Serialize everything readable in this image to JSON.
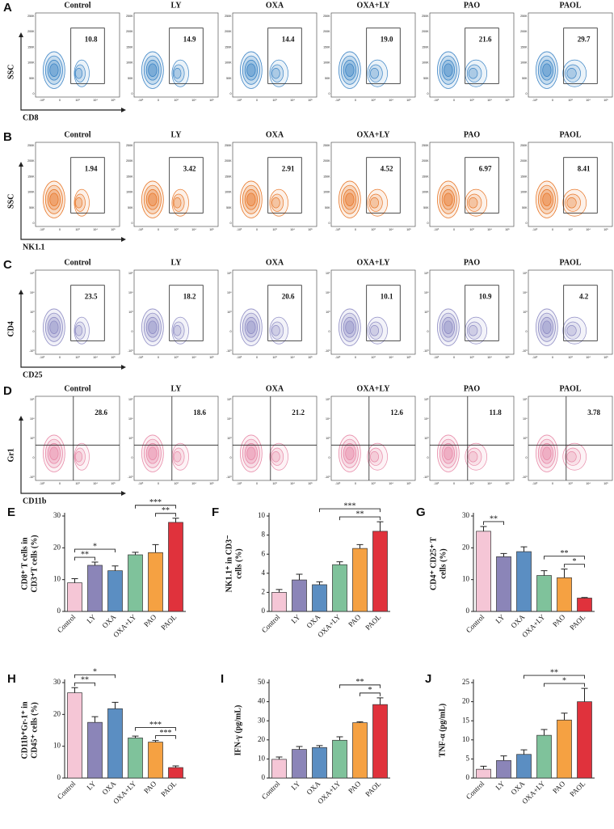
{
  "flow_panels": [
    {
      "label": "A",
      "x_label": "CD8",
      "y_label": "SSC",
      "gate": "box",
      "color": "#3d85c6",
      "xticks": [
        "-10³",
        "0",
        "10³",
        "10⁴",
        "10⁵"
      ],
      "yticks": [
        "0",
        "50K",
        "100K",
        "150K",
        "200K",
        "250K"
      ],
      "groups": [
        {
          "name": "Control",
          "value": "10.8"
        },
        {
          "name": "LY",
          "value": "14.9"
        },
        {
          "name": "OXA",
          "value": "14.4"
        },
        {
          "name": "OXA+LY",
          "value": "19.0"
        },
        {
          "name": "PAO",
          "value": "21.6"
        },
        {
          "name": "PAOL",
          "value": "29.7"
        }
      ]
    },
    {
      "label": "B",
      "x_label": "NK1.1",
      "y_label": "SSC",
      "gate": "box",
      "color": "#e8782a",
      "xticks": [
        "-10³",
        "0",
        "10³",
        "10⁴",
        "10⁵"
      ],
      "yticks": [
        "0",
        "50K",
        "100K",
        "150K",
        "200K",
        "250K"
      ],
      "groups": [
        {
          "name": "Control",
          "value": "1.94"
        },
        {
          "name": "LY",
          "value": "3.42"
        },
        {
          "name": "OXA",
          "value": "2.91"
        },
        {
          "name": "OXA+LY",
          "value": "4.52"
        },
        {
          "name": "PAO",
          "value": "6.97"
        },
        {
          "name": "PAOL",
          "value": "8.41"
        }
      ]
    },
    {
      "label": "C",
      "x_label": "CD25",
      "y_label": "CD4",
      "gate": "box",
      "color": "#8e8cc4",
      "xticks": [
        "-10³",
        "0",
        "10³",
        "10⁴",
        "10⁵"
      ],
      "yticks": [
        "-10³",
        "0",
        "10³",
        "10⁴",
        "10⁵"
      ],
      "groups": [
        {
          "name": "Control",
          "value": "23.5"
        },
        {
          "name": "LY",
          "value": "18.2"
        },
        {
          "name": "OXA",
          "value": "20.6"
        },
        {
          "name": "OXA+LY",
          "value": "10.1"
        },
        {
          "name": "PAO",
          "value": "10.9"
        },
        {
          "name": "PAOL",
          "value": "4.2"
        }
      ]
    },
    {
      "label": "D",
      "x_label": "CD11b",
      "y_label": "Gr1",
      "gate": "quadrant",
      "color": "#e88aa8",
      "xticks": [
        "-10³",
        "0",
        "10³",
        "10⁴",
        "10⁵"
      ],
      "yticks": [
        "-10³",
        "0",
        "10³",
        "10⁴",
        "10⁵"
      ],
      "groups": [
        {
          "name": "Control",
          "value": "28.6"
        },
        {
          "name": "LY",
          "value": "18.6"
        },
        {
          "name": "OXA",
          "value": "21.2"
        },
        {
          "name": "OXA+LY",
          "value": "12.6"
        },
        {
          "name": "PAO",
          "value": "11.8"
        },
        {
          "name": "PAOL",
          "value": "3.78"
        }
      ]
    }
  ],
  "chart_data": [
    {
      "type": "bar",
      "label": "E",
      "y_label": [
        "CD8⁺ T cells in",
        "CD3⁺T cells (%)"
      ],
      "categories": [
        "Control",
        "LY",
        "OXA",
        "OXA+LY",
        "PAO",
        "PAOL"
      ],
      "values": [
        9,
        14.5,
        12.8,
        17.8,
        18.5,
        28
      ],
      "errors": [
        1.3,
        1,
        1.5,
        0.8,
        2.5,
        1.3
      ],
      "colors": [
        "#f5c6d6",
        "#8b85b8",
        "#5b8ec2",
        "#7fc29b",
        "#f5a142",
        "#e0323c"
      ],
      "ylim": [
        0,
        30
      ],
      "yticks": [
        0,
        10,
        20,
        30
      ],
      "significance": [
        {
          "from": "Control",
          "to": "LY",
          "label": "**"
        },
        {
          "from": "Control",
          "to": "OXA",
          "label": "*"
        },
        {
          "from": "PAO",
          "to": "PAOL",
          "label": "**"
        },
        {
          "from": "OXA+LY",
          "to": "PAOL",
          "label": "***"
        }
      ]
    },
    {
      "type": "bar",
      "label": "F",
      "y_label": [
        "NK1.1⁺ in CD3⁻",
        "cells (%)"
      ],
      "categories": [
        "Control",
        "LY",
        "OXA",
        "OXA+LY",
        "PAO",
        "PAOL"
      ],
      "values": [
        2,
        3.3,
        2.8,
        4.9,
        6.6,
        8.4
      ],
      "errors": [
        0.3,
        0.6,
        0.3,
        0.3,
        0.4,
        1
      ],
      "colors": [
        "#f5c6d6",
        "#8b85b8",
        "#5b8ec2",
        "#7fc29b",
        "#f5a142",
        "#e0323c"
      ],
      "ylim": [
        0,
        10
      ],
      "yticks": [
        0,
        2,
        4,
        6,
        8,
        10
      ],
      "significance": [
        {
          "from": "OXA+LY",
          "to": "PAOL",
          "label": "**"
        },
        {
          "from": "OXA",
          "to": "PAOL",
          "label": "***"
        }
      ]
    },
    {
      "type": "bar",
      "label": "G",
      "y_label": [
        "CD4⁺ CD25⁺ T",
        "cells (%)"
      ],
      "categories": [
        "Control",
        "LY",
        "OXA",
        "OXA+LY",
        "PAO",
        "PAOL"
      ],
      "values": [
        25.2,
        17.2,
        18.8,
        11.3,
        10.6,
        4.2
      ],
      "errors": [
        1.5,
        1,
        1.5,
        1.5,
        2.7,
        0.2
      ],
      "colors": [
        "#f5c6d6",
        "#8b85b8",
        "#5b8ec2",
        "#7fc29b",
        "#f5a142",
        "#e0323c"
      ],
      "ylim": [
        0,
        30
      ],
      "yticks": [
        0,
        10,
        20,
        30
      ],
      "significance": [
        {
          "from": "Control",
          "to": "LY",
          "label": "**"
        },
        {
          "from": "PAO",
          "to": "PAOL",
          "label": "*"
        },
        {
          "from": "OXA+LY",
          "to": "PAOL",
          "label": "**"
        }
      ]
    },
    {
      "type": "bar",
      "label": "H",
      "y_label": [
        "CD11b⁺Gr-1⁺ in",
        "CD45⁺ cells (%)"
      ],
      "categories": [
        "Control",
        "LY",
        "OXA",
        "OXA+LY",
        "PAO",
        "PAOL"
      ],
      "values": [
        26.8,
        17.5,
        21.8,
        12.6,
        11.3,
        3.3
      ],
      "errors": [
        1.6,
        1.8,
        2,
        0.6,
        0.5,
        0.5
      ],
      "colors": [
        "#f5c6d6",
        "#8b85b8",
        "#5b8ec2",
        "#7fc29b",
        "#f5a142",
        "#e0323c"
      ],
      "ylim": [
        0,
        30
      ],
      "yticks": [
        0,
        10,
        20,
        30
      ],
      "significance": [
        {
          "from": "Control",
          "to": "LY",
          "label": "**"
        },
        {
          "from": "Control",
          "to": "OXA",
          "label": "*"
        },
        {
          "from": "PAO",
          "to": "PAOL",
          "label": "***"
        },
        {
          "from": "OXA+LY",
          "to": "PAOL",
          "label": "***"
        }
      ]
    },
    {
      "type": "bar",
      "label": "I",
      "y_label": [
        "IFN-γ (pg/mL)"
      ],
      "categories": [
        "Control",
        "LY",
        "OXA",
        "OXA+LY",
        "PAO",
        "PAOL"
      ],
      "values": [
        9.8,
        15,
        16,
        19.8,
        29,
        38.5
      ],
      "errors": [
        1.2,
        1.5,
        1,
        1.8,
        0.5,
        3.5
      ],
      "colors": [
        "#f5c6d6",
        "#8b85b8",
        "#5b8ec2",
        "#7fc29b",
        "#f5a142",
        "#e0323c"
      ],
      "ylim": [
        0,
        50
      ],
      "yticks": [
        0,
        10,
        20,
        30,
        40,
        50
      ],
      "significance": [
        {
          "from": "PAO",
          "to": "PAOL",
          "label": "*"
        },
        {
          "from": "OXA+LY",
          "to": "PAOL",
          "label": "**"
        }
      ]
    },
    {
      "type": "bar",
      "label": "J",
      "y_label": [
        "TNF-α (pg/mL)"
      ],
      "categories": [
        "Control",
        "LY",
        "OXA",
        "OXA+LY",
        "PAO",
        "PAOL"
      ],
      "values": [
        2.3,
        4.6,
        6.2,
        11.2,
        15.2,
        20
      ],
      "errors": [
        0.8,
        1.2,
        1.2,
        1.5,
        1.8,
        3.5
      ],
      "colors": [
        "#f5c6d6",
        "#8b85b8",
        "#5b8ec2",
        "#7fc29b",
        "#f5a142",
        "#e0323c"
      ],
      "ylim": [
        0,
        25
      ],
      "yticks": [
        0,
        5,
        10,
        15,
        20,
        25
      ],
      "significance": [
        {
          "from": "OXA+LY",
          "to": "PAOL",
          "label": "*"
        },
        {
          "from": "OXA",
          "to": "PAOL",
          "label": "**"
        }
      ]
    }
  ]
}
